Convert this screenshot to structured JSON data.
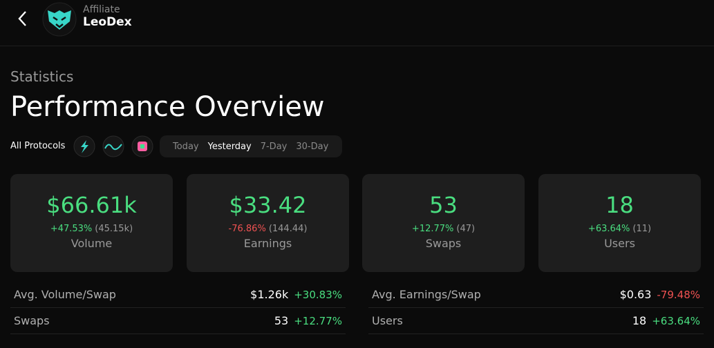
{
  "header": {
    "label": "Affiliate",
    "name": "LeoDex"
  },
  "section": {
    "eyebrow": "Statistics",
    "title": "Performance Overview"
  },
  "filters": {
    "protocols": "All Protocols",
    "periods": [
      "Today",
      "Yesterday",
      "7-Day",
      "30-Day"
    ],
    "selected_period": 1
  },
  "cards": [
    {
      "value": "$66.61k",
      "change": "+47.53%",
      "previous": "(45.15k)",
      "label": "Volume"
    },
    {
      "value": "$33.42",
      "change": "-76.86%",
      "previous": "(144.44)",
      "label": "Earnings"
    },
    {
      "value": "53",
      "change": "+12.77%",
      "previous": "(47)",
      "label": "Swaps"
    },
    {
      "value": "18",
      "change": "+63.64%",
      "previous": "(11)",
      "label": "Users"
    }
  ],
  "rows": [
    [
      {
        "label": "Avg. Volume/Swap",
        "value": "$1.26k",
        "change": "+30.83%"
      },
      {
        "label": "Swaps",
        "value": "53",
        "change": "+12.77%"
      }
    ],
    [
      {
        "label": "Avg. Earnings/Swap",
        "value": "$0.63",
        "change": "-79.48%"
      },
      {
        "label": "Users",
        "value": "18",
        "change": "+63.64%"
      }
    ]
  ]
}
